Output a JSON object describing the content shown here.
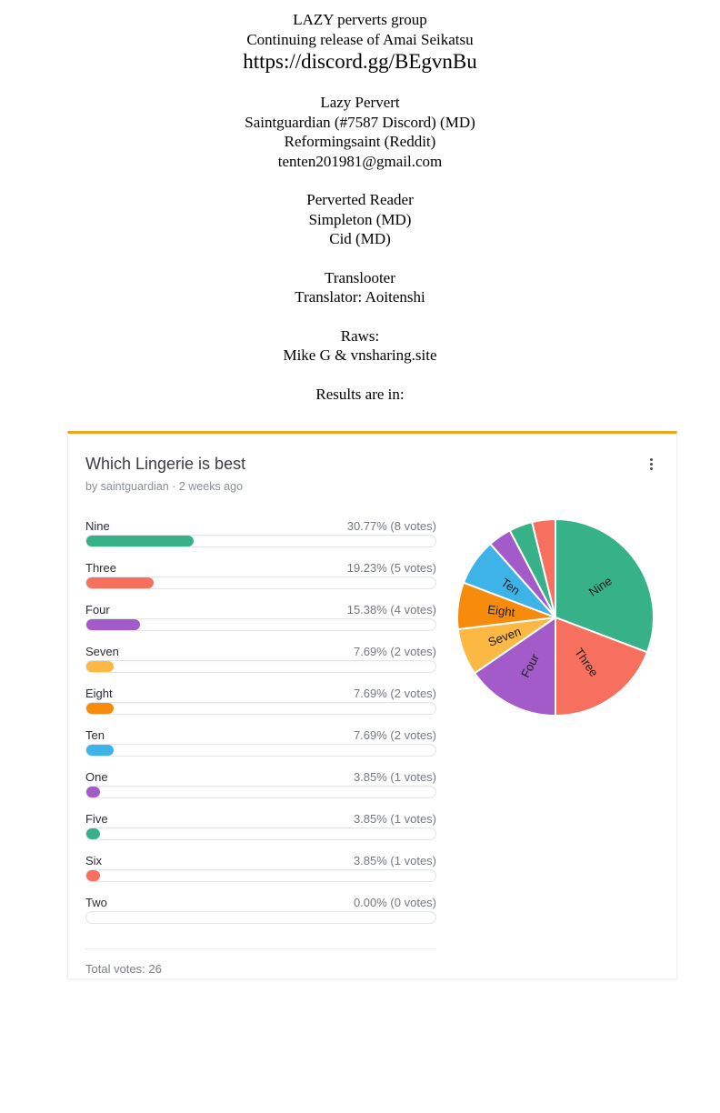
{
  "credits": {
    "title_lines": [
      "LAZY perverts group",
      "Continuing release of Amai Seikatsu"
    ],
    "discord_url": "https://discord.gg/BEgvnBu",
    "sections": [
      {
        "lines": [
          "Lazy Pervert",
          "Saintguardian (#7587 Discord) (MD)",
          "Reformingsaint (Reddit)",
          "tenten201981@gmail.com"
        ]
      },
      {
        "lines": [
          "Perverted Reader",
          "Simpleton (MD)",
          "Cid (MD)"
        ]
      },
      {
        "lines": [
          "Translooter",
          "Translator: Aoitenshi"
        ]
      },
      {
        "lines": [
          "Raws:",
          "Mike G & vnsharing.site"
        ]
      },
      {
        "lines": [
          "Results are in:"
        ]
      }
    ]
  },
  "poll": {
    "title": "Which Lingerie is best",
    "byline": "by saintguardian · 2 weeks ago",
    "menu_icon": "kebab-menu",
    "accent_color": "#f1a51e",
    "total_votes_label": "Total votes: 26",
    "options": [
      {
        "label": "Nine",
        "percent": 30.77,
        "votes": 8,
        "percent_label": "30.77% (8 votes)",
        "color": "#36b188"
      },
      {
        "label": "Three",
        "percent": 19.23,
        "votes": 5,
        "percent_label": "19.23% (5 votes)",
        "color": "#f7705e"
      },
      {
        "label": "Four",
        "percent": 15.38,
        "votes": 4,
        "percent_label": "15.38% (4 votes)",
        "color": "#a35bc9"
      },
      {
        "label": "Seven",
        "percent": 7.69,
        "votes": 2,
        "percent_label": "7.69% (2 votes)",
        "color": "#fbb843"
      },
      {
        "label": "Eight",
        "percent": 7.69,
        "votes": 2,
        "percent_label": "7.69% (2 votes)",
        "color": "#f78b0b"
      },
      {
        "label": "Ten",
        "percent": 7.69,
        "votes": 2,
        "percent_label": "7.69% (2 votes)",
        "color": "#3eb3e8"
      },
      {
        "label": "One",
        "percent": 3.85,
        "votes": 1,
        "percent_label": "3.85% (1 votes)",
        "color": "#a35bc9"
      },
      {
        "label": "Five",
        "percent": 3.85,
        "votes": 1,
        "percent_label": "3.85% (1 votes)",
        "color": "#36b188"
      },
      {
        "label": "Six",
        "percent": 3.85,
        "votes": 1,
        "percent_label": "3.85% (1 votes)",
        "color": "#f7705e"
      },
      {
        "label": "Two",
        "percent": 0.0,
        "votes": 0,
        "percent_label": "0.00% (0 votes)",
        "color": null
      }
    ]
  },
  "chart_data": {
    "type": "pie",
    "title": "Which Lingerie is best",
    "categories": [
      "Nine",
      "Three",
      "Four",
      "Seven",
      "Eight",
      "Ten",
      "One",
      "Five",
      "Six",
      "Two"
    ],
    "values": [
      8,
      5,
      4,
      2,
      2,
      2,
      1,
      1,
      1,
      0
    ],
    "percents": [
      30.77,
      19.23,
      15.38,
      7.69,
      7.69,
      7.69,
      3.85,
      3.85,
      3.85,
      0.0
    ],
    "colors": [
      "#36b188",
      "#f7705e",
      "#a35bc9",
      "#fbb843",
      "#f78b0b",
      "#3eb3e8",
      "#a35bc9",
      "#36b188",
      "#f7705e",
      null
    ],
    "total_votes": 26,
    "start_angle_deg": 0,
    "direction": "clockwise",
    "slice_stroke": "#ffffff",
    "labels_min_percent": 5,
    "legend": "none"
  }
}
